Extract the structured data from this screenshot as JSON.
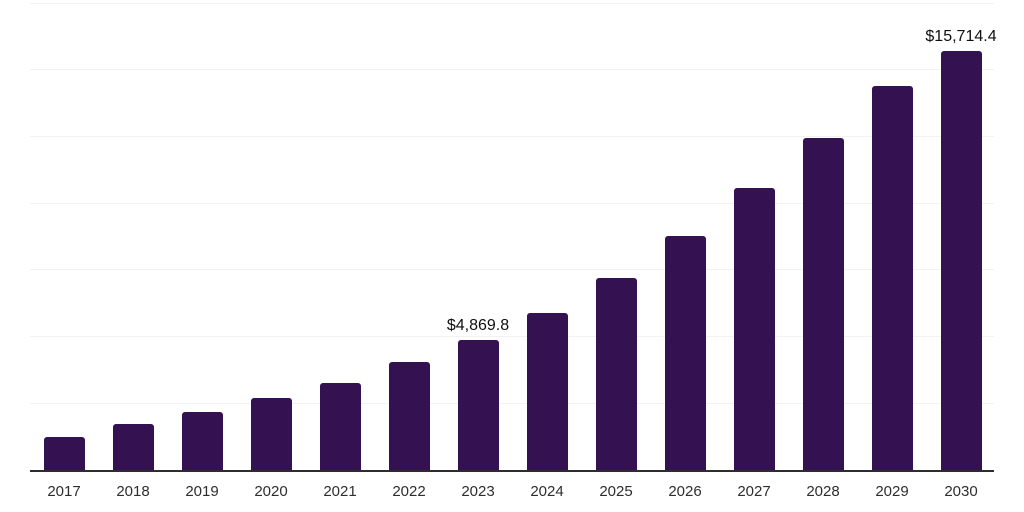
{
  "chart_data": {
    "type": "bar",
    "title": "",
    "xlabel": "",
    "ylabel": "",
    "categories": [
      "2017",
      "2018",
      "2019",
      "2020",
      "2021",
      "2022",
      "2023",
      "2024",
      "2025",
      "2026",
      "2027",
      "2028",
      "2029",
      "2030"
    ],
    "values": [
      1230,
      1715,
      2160,
      2685,
      3245,
      4030,
      4869.8,
      5890,
      7200,
      8765,
      10555,
      12460,
      14400,
      15714.4
    ],
    "data_labels": [
      {
        "category": "2023",
        "text": "$4,869.8"
      },
      {
        "category": "2030",
        "text": "$15,714.4"
      }
    ],
    "ylim": [
      0,
      17500
    ],
    "gridline_step": 2500,
    "grid": true,
    "legend": false,
    "y_axis_labels_visible": false,
    "colors": {
      "bar": "#341150",
      "background": "#ffffff",
      "gridline": "#f2f2f2",
      "baseline": "#2d2d2d",
      "tick_label": "#2e2e2e",
      "data_label": "#0f0f0f"
    }
  }
}
